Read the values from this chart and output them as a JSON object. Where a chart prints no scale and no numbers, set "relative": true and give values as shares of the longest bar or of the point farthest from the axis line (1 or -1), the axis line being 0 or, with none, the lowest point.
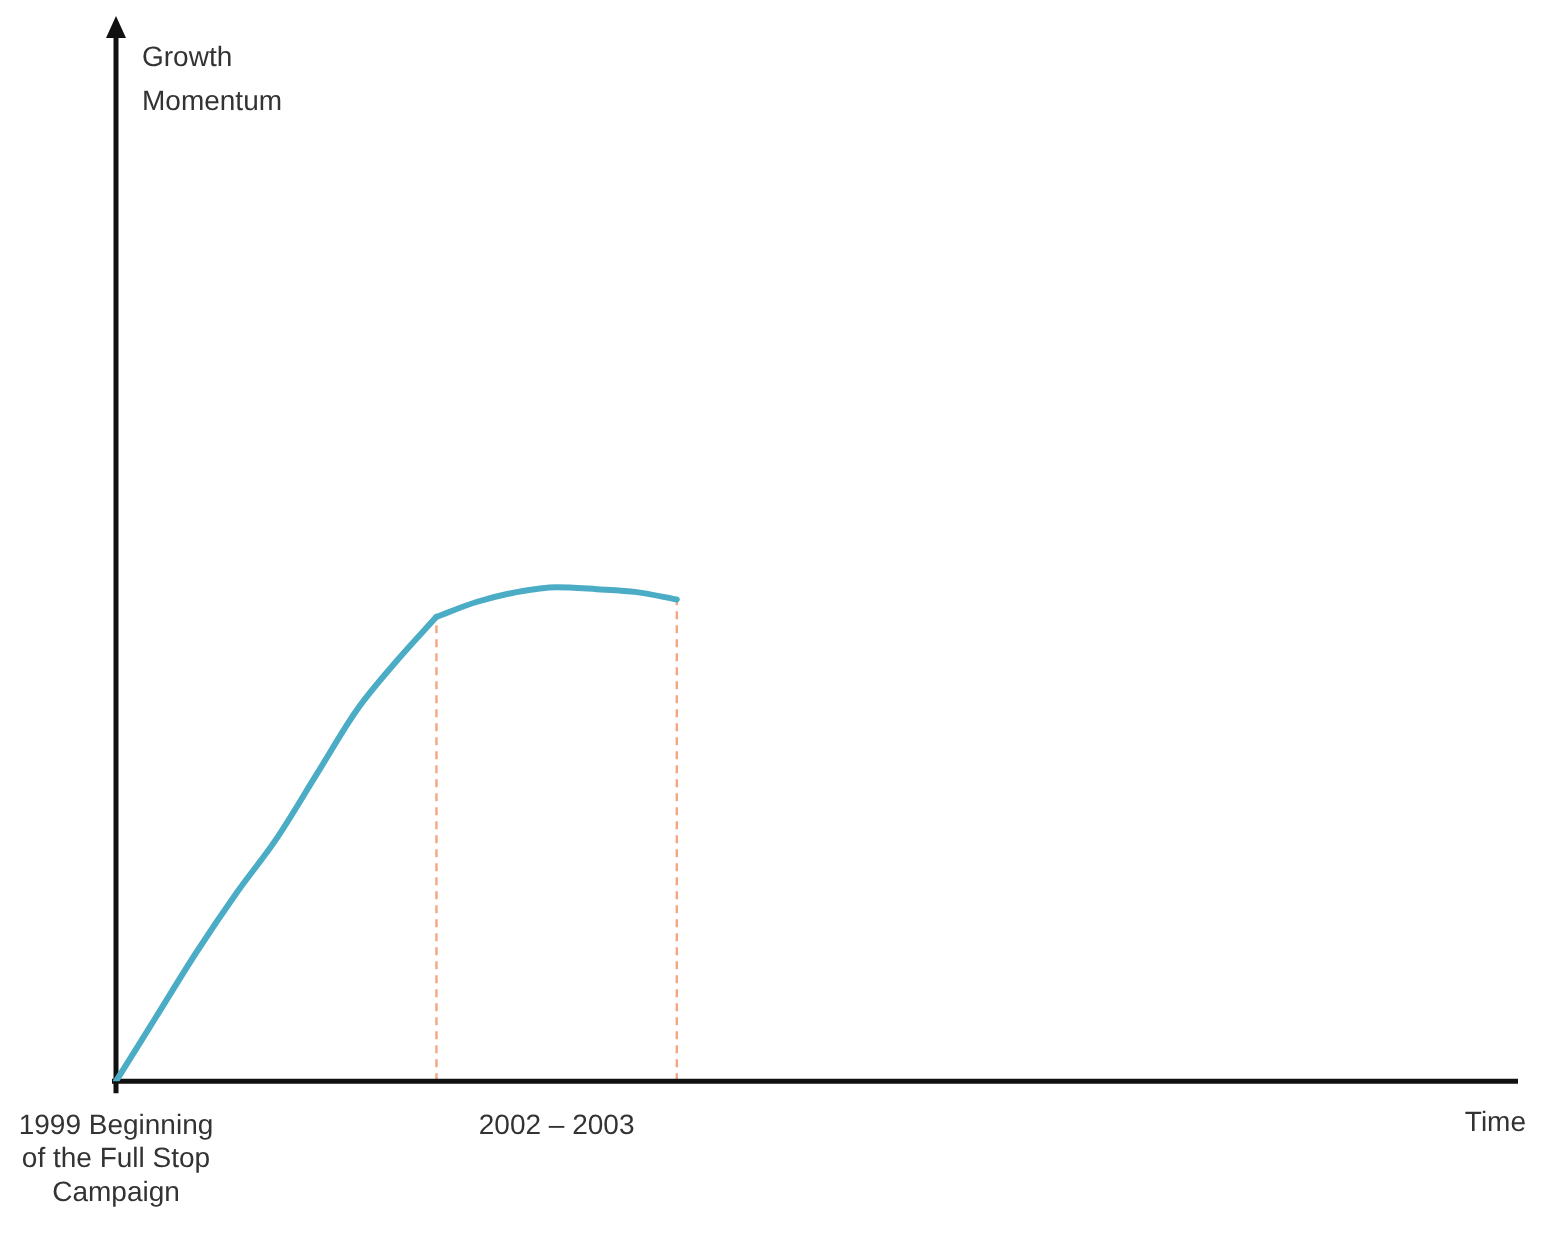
{
  "chart_data": {
    "type": "line",
    "relative": true,
    "xlabel": "Time",
    "annotations": [
      "Growth Momentum"
    ],
    "categories": [
      "1999 Beginning of the Full Stop Campaign",
      null,
      null,
      null,
      null,
      null,
      null,
      null,
      null,
      null,
      null,
      "2002 – 2003",
      null,
      null,
      null,
      null,
      null,
      null,
      null,
      null,
      null,
      null,
      null,
      null,
      null,
      null,
      null,
      null,
      null,
      null,
      null,
      null,
      null,
      null,
      null,
      null
    ],
    "series": [
      {
        "color": "#4bacc6",
        "values": [
          0,
          0.13,
          0.26,
          0.38,
          0.49,
          0.62,
          0.75,
          0.85,
          0.94,
          null,
          null,
          null,
          null,
          null,
          null,
          null,
          null,
          null,
          null,
          null,
          null,
          null,
          null,
          null,
          null,
          null,
          null,
          null,
          null,
          null,
          null,
          null,
          null,
          null,
          null,
          null
        ]
      },
      {
        "color": "#4bacc6",
        "values": [
          null,
          null,
          null,
          null,
          null,
          null,
          null,
          null,
          0.94,
          0.97,
          0.99,
          1.0,
          0.996,
          0.99,
          0.975,
          null,
          null,
          null,
          null,
          null,
          null,
          null,
          null,
          null,
          null,
          null,
          null,
          null,
          null,
          null,
          null,
          null,
          null,
          null,
          null,
          null
        ]
      }
    ],
    "legend": false,
    "marker": "none",
    "line_style": "solid"
  }
}
